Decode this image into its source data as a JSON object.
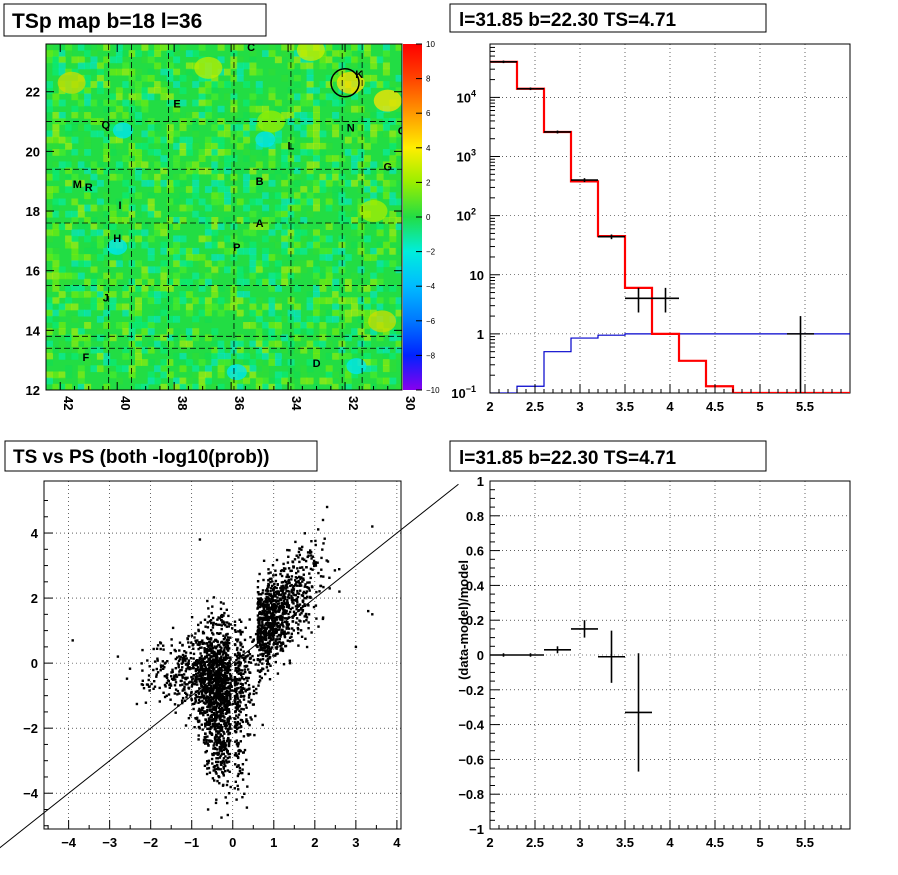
{
  "colors": {
    "spectrum_model": "#ff0000",
    "background_model": "#0000cc",
    "data_points": "#000000",
    "tsmap_base": "#22dd44"
  },
  "chart_data": [
    {
      "type": "heatmap",
      "title": "TSp map b=18 l=36",
      "x_ticks": [
        42,
        40,
        38,
        36,
        34,
        32,
        30
      ],
      "y_ticks": [
        12,
        14,
        16,
        18,
        20,
        22
      ],
      "xlim": [
        42.5,
        30
      ],
      "ylim": [
        12,
        23.6
      ],
      "colorbar": {
        "ticks": [
          10,
          8,
          6,
          4,
          2,
          0,
          -2,
          -4,
          -6,
          -8,
          -10
        ],
        "range": [
          -10,
          10
        ]
      },
      "sources": [
        {
          "label": "C",
          "l": 35.3,
          "b": 23.5
        },
        {
          "label": "K",
          "l": 31.5,
          "b": 22.6
        },
        {
          "label": "E",
          "l": 37.9,
          "b": 21.6
        },
        {
          "label": "Q",
          "l": 40.4,
          "b": 20.9
        },
        {
          "label": "N",
          "l": 31.8,
          "b": 20.8
        },
        {
          "label": "O",
          "l": 30.0,
          "b": 20.7
        },
        {
          "label": "L",
          "l": 33.9,
          "b": 20.2
        },
        {
          "label": "G",
          "l": 30.5,
          "b": 19.5
        },
        {
          "label": "M",
          "l": 41.4,
          "b": 18.9
        },
        {
          "label": "R",
          "l": 41.0,
          "b": 18.8
        },
        {
          "label": "B",
          "l": 35.0,
          "b": 19.0
        },
        {
          "label": "I",
          "l": 39.9,
          "b": 18.2
        },
        {
          "label": "A",
          "l": 35.0,
          "b": 17.6
        },
        {
          "label": "H",
          "l": 40.0,
          "b": 17.1
        },
        {
          "label": "P",
          "l": 35.8,
          "b": 16.8
        },
        {
          "label": "J",
          "l": 40.4,
          "b": 15.1
        },
        {
          "label": "F",
          "l": 41.1,
          "b": 13.1
        },
        {
          "label": "D",
          "l": 33.0,
          "b": 12.9
        }
      ],
      "circle": {
        "l": 32.0,
        "b": 22.3
      }
    },
    {
      "type": "line",
      "title": "l=31.85 b=22.30 TS=4.71",
      "yscale": "log",
      "xlim": [
        2,
        6
      ],
      "ylim": [
        0.1,
        80000
      ],
      "x_ticks": [
        2,
        2.5,
        3,
        3.5,
        4,
        4.5,
        5,
        5.5
      ],
      "x_tick_labels": [
        "2",
        "2.5",
        "3",
        "3.5",
        "4",
        "4.5",
        "5",
        "5.5"
      ],
      "y_tick_labels": [
        "10^{-1}",
        "1",
        "10",
        "10^{2}",
        "10^{3}",
        "10^{4}"
      ],
      "series": [
        {
          "edges": [
            2.0,
            2.3,
            2.6,
            2.9,
            3.2,
            3.5,
            3.8,
            4.1,
            4.4,
            4.7,
            5.0,
            5.3,
            5.6,
            6.0
          ],
          "values": [
            40000,
            14000,
            2600,
            380,
            45,
            6,
            1,
            0.35,
            0.13,
            0.1,
            0.1,
            0.1,
            0.1
          ]
        },
        {
          "edges": [
            2.0,
            2.3,
            2.6,
            2.9,
            3.2,
            3.5,
            3.8,
            4.1,
            4.4,
            4.7,
            5.0,
            5.3,
            5.6,
            6.0
          ],
          "values": [
            0.1,
            0.13,
            0.5,
            0.85,
            0.95,
            1,
            1,
            1,
            1,
            1,
            1,
            1,
            1
          ]
        }
      ],
      "points": [
        {
          "x": 2.15,
          "y": 40000,
          "xerr": 0.15,
          "ylo": 38000,
          "yhi": 42000
        },
        {
          "x": 2.45,
          "y": 14000,
          "xerr": 0.15,
          "ylo": 13300,
          "yhi": 14700
        },
        {
          "x": 2.75,
          "y": 2600,
          "xerr": 0.15,
          "ylo": 2450,
          "yhi": 2750
        },
        {
          "x": 3.05,
          "y": 400,
          "xerr": 0.15,
          "ylo": 370,
          "yhi": 430
        },
        {
          "x": 3.35,
          "y": 44,
          "xerr": 0.15,
          "ylo": 40,
          "yhi": 48
        },
        {
          "x": 3.65,
          "y": 4,
          "xerr": 0.15,
          "ylo": 2.3,
          "yhi": 6
        },
        {
          "x": 3.95,
          "y": 4,
          "xerr": 0.15,
          "ylo": 2.3,
          "yhi": 6
        },
        {
          "x": 5.45,
          "y": 1,
          "xerr": 0.15,
          "ylo": 0.1,
          "yhi": 2
        }
      ]
    },
    {
      "type": "scatter",
      "title": "TS vs PS (both -log10(prob))",
      "xlim": [
        -4.6,
        4.1
      ],
      "ylim": [
        -5.1,
        5.6
      ],
      "x_ticks": [
        -4,
        -3,
        -2,
        -1,
        0,
        1,
        2,
        3,
        4
      ],
      "x_tick_labels": [
        "−4",
        "−3",
        "−2",
        "−1",
        "0",
        "1",
        "2",
        "3",
        "4"
      ],
      "y_ticks": [
        -4,
        -2,
        0,
        2,
        4
      ],
      "y_tick_labels": [
        "−4",
        "−2",
        "0",
        "2",
        "4"
      ],
      "diagonal": [
        [
          -4.6,
          -4.6
        ],
        [
          4.1,
          4.1
        ]
      ],
      "outliers": [
        [
          -3.9,
          0.7
        ],
        [
          3.3,
          1.6
        ],
        [
          3.4,
          1.5
        ],
        [
          3.0,
          0.5
        ],
        [
          3.4,
          4.2
        ],
        [
          2.3,
          4.8
        ],
        [
          2.2,
          4.4
        ],
        [
          -0.6,
          -4.5
        ],
        [
          -0.4,
          -4.2
        ],
        [
          -2.8,
          0.2
        ],
        [
          -2.2,
          0.4
        ],
        [
          -0.8,
          3.8
        ],
        [
          2.6,
          2.2
        ]
      ]
    },
    {
      "type": "scatter",
      "title": "l=31.85 b=22.30 TS=4.71",
      "ylabel": "(data-model)/model",
      "xlim": [
        2,
        6
      ],
      "ylim": [
        -1,
        1
      ],
      "x_ticks": [
        2,
        2.5,
        3,
        3.5,
        4,
        4.5,
        5,
        5.5
      ],
      "x_tick_labels": [
        "2",
        "2.5",
        "3",
        "3.5",
        "4",
        "4.5",
        "5",
        "5.5"
      ],
      "y_ticks": [
        -1,
        -0.8,
        -0.6,
        -0.4,
        -0.2,
        0,
        0.2,
        0.4,
        0.6,
        0.8,
        1
      ],
      "y_tick_labels": [
        "−1",
        "−0.8",
        "−0.6",
        "−0.4",
        "−0.2",
        "0",
        "0.2",
        "0.4",
        "0.6",
        "0.8",
        "1"
      ],
      "points": [
        {
          "x": 2.15,
          "y": 0.0,
          "xerr": 0.15,
          "yerr": 0.01
        },
        {
          "x": 2.45,
          "y": 0.0,
          "xerr": 0.15,
          "yerr": 0.01
        },
        {
          "x": 2.75,
          "y": 0.03,
          "xerr": 0.15,
          "yerr": 0.02
        },
        {
          "x": 3.05,
          "y": 0.15,
          "xerr": 0.15,
          "yerr": 0.05
        },
        {
          "x": 3.35,
          "y": -0.01,
          "xerr": 0.15,
          "yerr": 0.15
        },
        {
          "x": 3.65,
          "y": -0.33,
          "xerr": 0.15,
          "yerr": 0.34
        }
      ]
    }
  ]
}
